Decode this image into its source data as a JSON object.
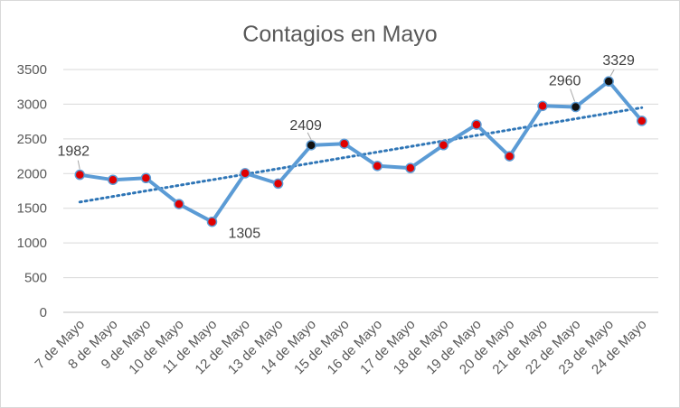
{
  "chart_data": {
    "type": "line",
    "title": "Contagios en Mayo",
    "xlabel": "",
    "ylabel": "",
    "ylim": [
      0,
      3500
    ],
    "yticks": [
      0,
      500,
      1000,
      1500,
      2000,
      2500,
      3000,
      3500
    ],
    "grid": true,
    "legend": "none",
    "categories": [
      "7 de Mayo",
      "8 de Mayo",
      "9 de Mayo",
      "10 de Mayo",
      "11 de Mayo",
      "12 de Mayo",
      "13 de Mayo",
      "14 de Mayo",
      "15 de Mayo",
      "16 de Mayo",
      "17 de Mayo",
      "18 de Mayo",
      "19 de Mayo",
      "20 de Mayo",
      "21 de Mayo",
      "22 de Mayo",
      "23 de Mayo",
      "24 de Mayo"
    ],
    "series": [
      {
        "name": "Contagios",
        "values": [
          1982,
          1910,
          1935,
          1560,
          1305,
          2005,
          1855,
          2409,
          2430,
          2110,
          2080,
          2410,
          2705,
          2250,
          2975,
          2960,
          3329,
          2760
        ],
        "color": "#5b9bd5",
        "marker_color": "#e00000",
        "highlight_marker_color": "#111111",
        "highlight_indices": [
          7,
          15,
          16
        ]
      }
    ],
    "data_labels": [
      {
        "index": 0,
        "text": "1982"
      },
      {
        "index": 4,
        "text": "1305"
      },
      {
        "index": 7,
        "text": "2409"
      },
      {
        "index": 15,
        "text": "2960"
      },
      {
        "index": 16,
        "text": "3329"
      }
    ],
    "trendline": {
      "type": "linear",
      "style": "dotted",
      "color": "#2e75b6",
      "start_value": 1590,
      "end_value": 2950
    }
  }
}
